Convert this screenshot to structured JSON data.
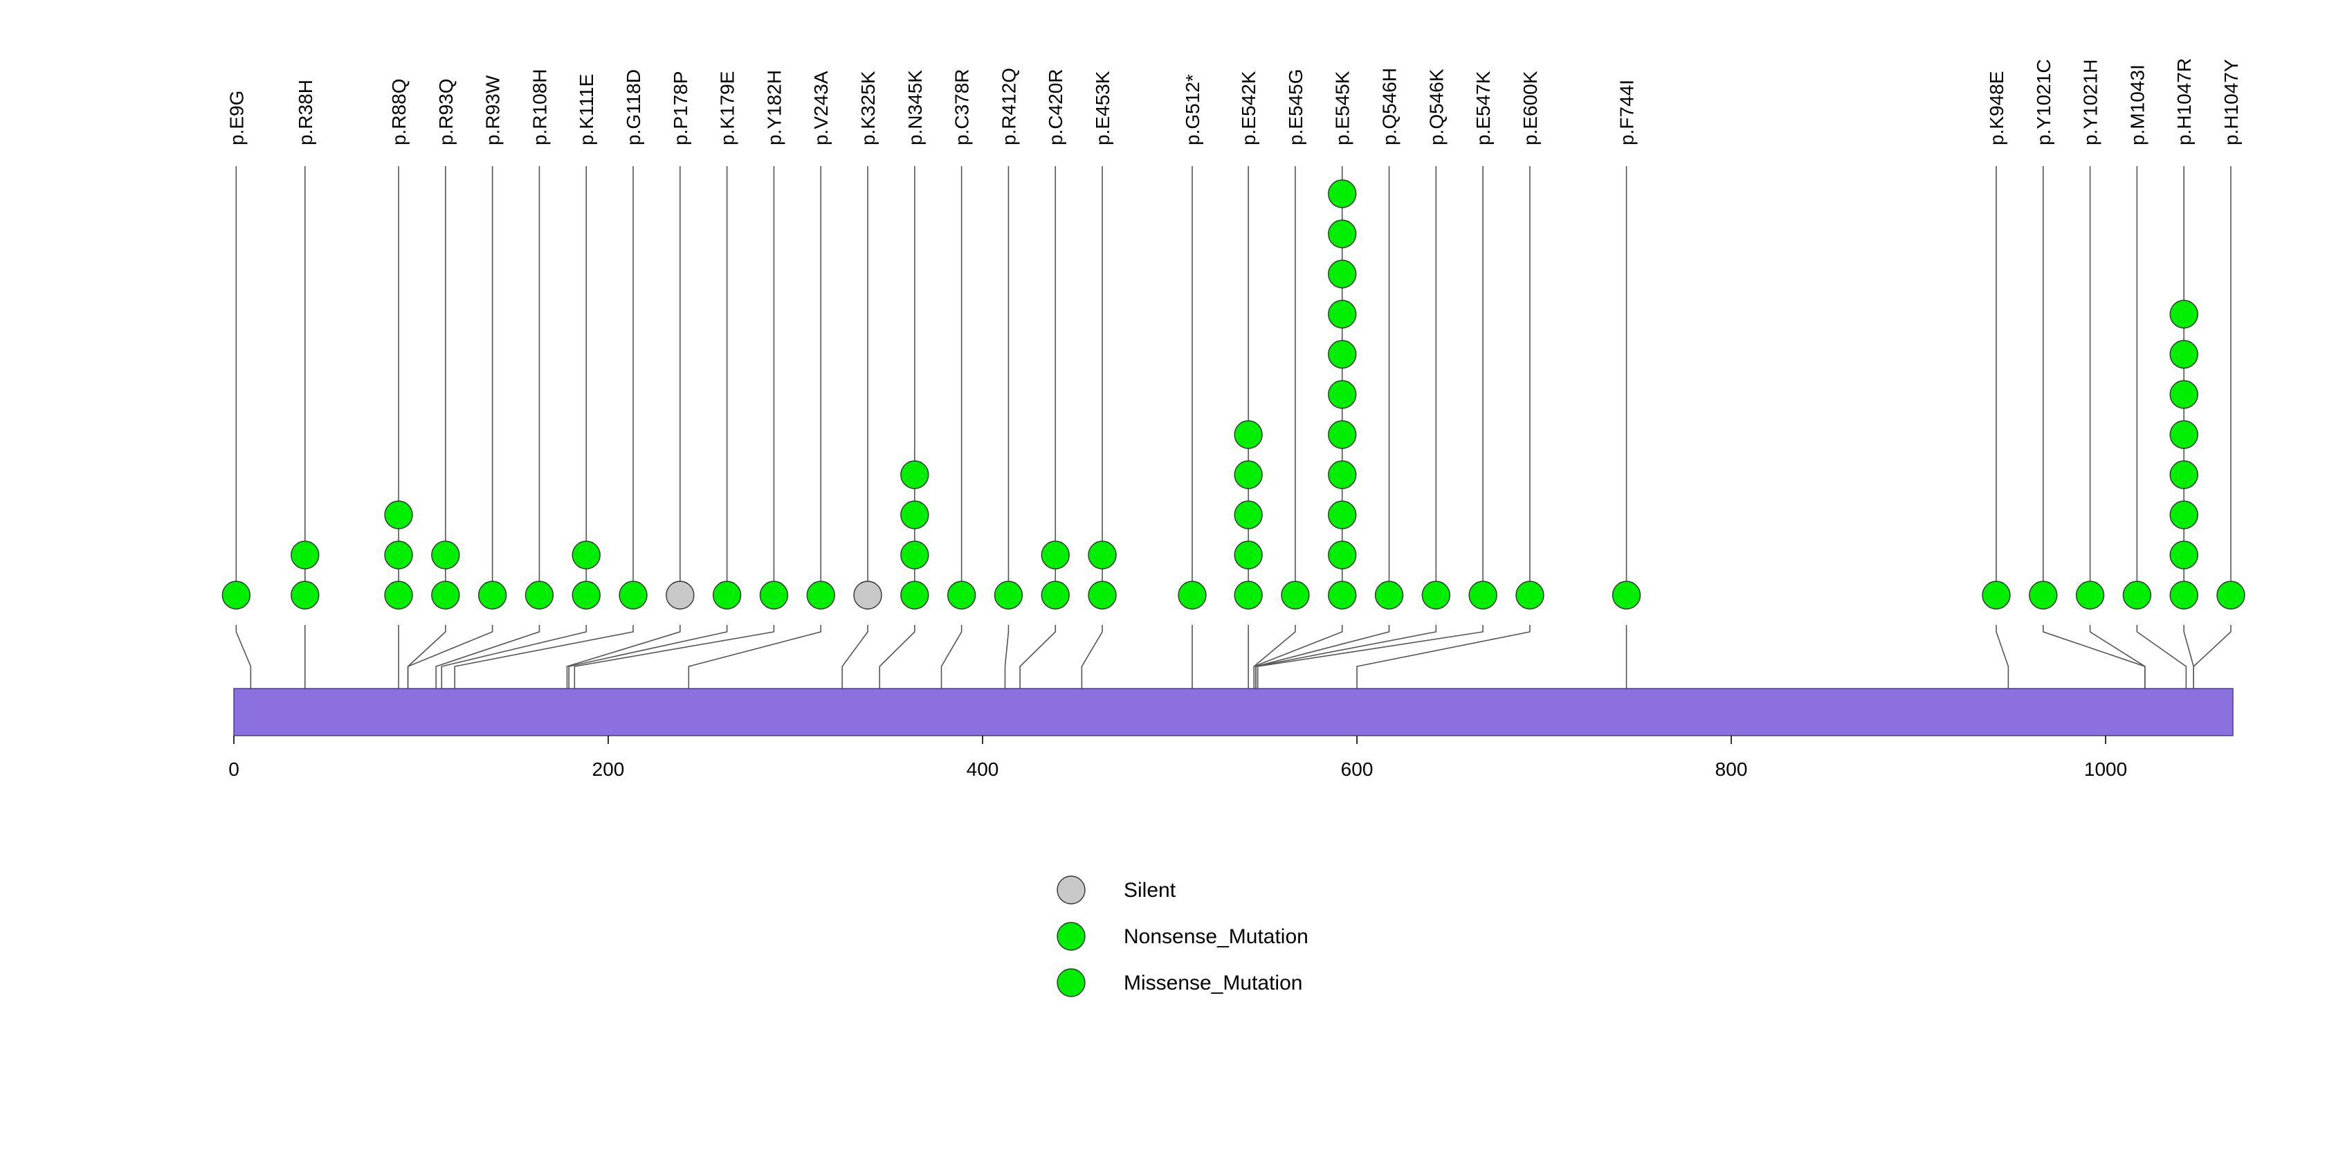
{
  "chart_data": {
    "type": "lollipop",
    "title": "",
    "xlabel": "",
    "ylabel": "",
    "xlim": [
      0,
      1068
    ],
    "x_ticks": [
      0,
      200,
      400,
      600,
      800,
      1000
    ],
    "protein_bar_color": "#8B70E0",
    "protein_length": 1068,
    "colors": {
      "Silent": "#C8C8C8",
      "Nonsense_Mutation": "#00EE00",
      "Missense_Mutation": "#00EE00"
    },
    "legend": {
      "placement": "bottom-center",
      "entries": [
        {
          "label": "Silent",
          "color": "#C8C8C8"
        },
        {
          "label": "Nonsense_Mutation",
          "color": "#00EE00"
        },
        {
          "label": "Missense_Mutation",
          "color": "#00EE00"
        }
      ]
    },
    "mutations": [
      {
        "label": "p.E9G",
        "pos": 9,
        "count": 1,
        "type": "Missense_Mutation"
      },
      {
        "label": "p.R38H",
        "pos": 38,
        "count": 2,
        "type": "Missense_Mutation"
      },
      {
        "label": "p.R88Q",
        "pos": 88,
        "count": 3,
        "type": "Missense_Mutation"
      },
      {
        "label": "p.R93Q",
        "pos": 93,
        "count": 2,
        "type": "Missense_Mutation"
      },
      {
        "label": "p.R93W",
        "pos": 93,
        "count": 1,
        "type": "Missense_Mutation"
      },
      {
        "label": "p.R108H",
        "pos": 108,
        "count": 1,
        "type": "Missense_Mutation"
      },
      {
        "label": "p.K111E",
        "pos": 111,
        "count": 2,
        "type": "Missense_Mutation"
      },
      {
        "label": "p.G118D",
        "pos": 118,
        "count": 1,
        "type": "Missense_Mutation"
      },
      {
        "label": "p.P178P",
        "pos": 178,
        "count": 1,
        "type": "Silent"
      },
      {
        "label": "p.K179E",
        "pos": 179,
        "count": 1,
        "type": "Missense_Mutation"
      },
      {
        "label": "p.Y182H",
        "pos": 182,
        "count": 1,
        "type": "Missense_Mutation"
      },
      {
        "label": "p.V243A",
        "pos": 243,
        "count": 1,
        "type": "Missense_Mutation"
      },
      {
        "label": "p.K325K",
        "pos": 325,
        "count": 1,
        "type": "Silent"
      },
      {
        "label": "p.N345K",
        "pos": 345,
        "count": 4,
        "type": "Missense_Mutation"
      },
      {
        "label": "p.C378R",
        "pos": 378,
        "count": 1,
        "type": "Missense_Mutation"
      },
      {
        "label": "p.R412Q",
        "pos": 412,
        "count": 1,
        "type": "Missense_Mutation"
      },
      {
        "label": "p.C420R",
        "pos": 420,
        "count": 2,
        "type": "Missense_Mutation"
      },
      {
        "label": "p.E453K",
        "pos": 453,
        "count": 2,
        "type": "Missense_Mutation"
      },
      {
        "label": "p.G512*",
        "pos": 512,
        "count": 1,
        "type": "Nonsense_Mutation"
      },
      {
        "label": "p.E542K",
        "pos": 542,
        "count": 5,
        "type": "Missense_Mutation"
      },
      {
        "label": "p.E545G",
        "pos": 545,
        "count": 1,
        "type": "Missense_Mutation"
      },
      {
        "label": "p.E545K",
        "pos": 545,
        "count": 11,
        "type": "Missense_Mutation"
      },
      {
        "label": "p.Q546H",
        "pos": 546,
        "count": 1,
        "type": "Missense_Mutation"
      },
      {
        "label": "p.Q546K",
        "pos": 546,
        "count": 1,
        "type": "Missense_Mutation"
      },
      {
        "label": "p.E547K",
        "pos": 547,
        "count": 1,
        "type": "Missense_Mutation"
      },
      {
        "label": "p.E600K",
        "pos": 600,
        "count": 1,
        "type": "Missense_Mutation"
      },
      {
        "label": "p.F744I",
        "pos": 744,
        "count": 1,
        "type": "Missense_Mutation"
      },
      {
        "label": "p.K948E",
        "pos": 948,
        "count": 1,
        "type": "Missense_Mutation"
      },
      {
        "label": "p.Y1021C",
        "pos": 1021,
        "count": 1,
        "type": "Missense_Mutation"
      },
      {
        "label": "p.Y1021H",
        "pos": 1021,
        "count": 1,
        "type": "Missense_Mutation"
      },
      {
        "label": "p.M1043I",
        "pos": 1043,
        "count": 1,
        "type": "Missense_Mutation"
      },
      {
        "label": "p.H1047R",
        "pos": 1047,
        "count": 8,
        "type": "Missense_Mutation"
      },
      {
        "label": "p.H1047Y",
        "pos": 1047,
        "count": 1,
        "type": "Missense_Mutation"
      }
    ]
  }
}
